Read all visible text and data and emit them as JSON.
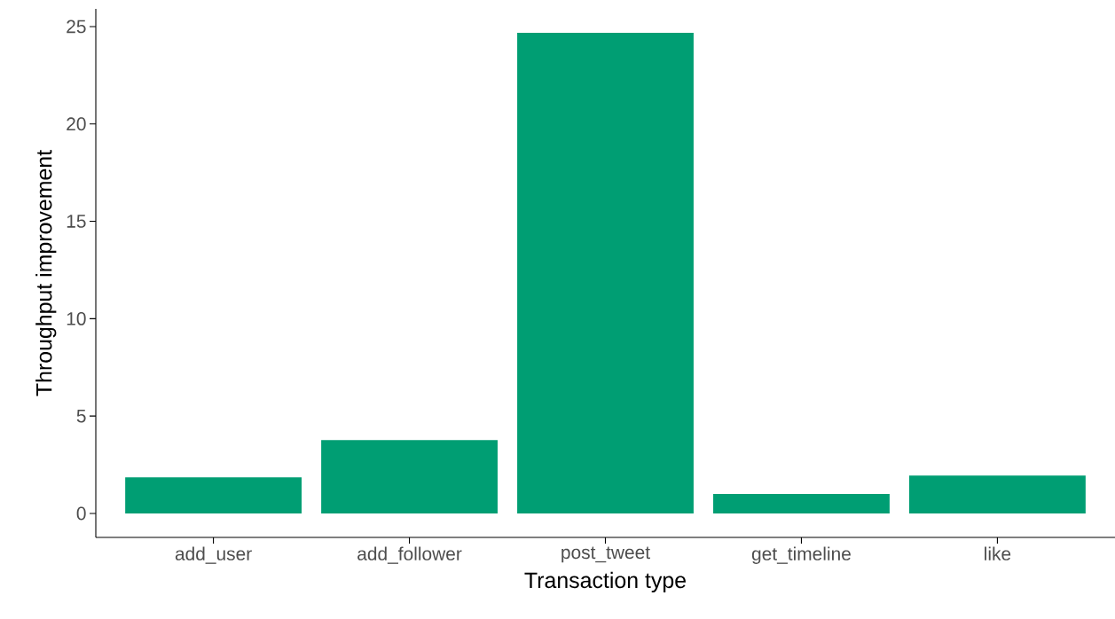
{
  "chart_data": {
    "type": "bar",
    "xlabel": "Transaction type",
    "ylabel": "Throughput improvement",
    "categories": [
      "add_user",
      "add_follower",
      "post_tweet",
      "get_timeline",
      "like"
    ],
    "values": [
      1.86,
      3.77,
      24.68,
      1.0,
      1.95
    ],
    "color": "#009e73",
    "ylim": [
      -1.23,
      25.91
    ],
    "yticks": [
      0,
      5,
      10,
      15,
      20,
      25
    ]
  }
}
